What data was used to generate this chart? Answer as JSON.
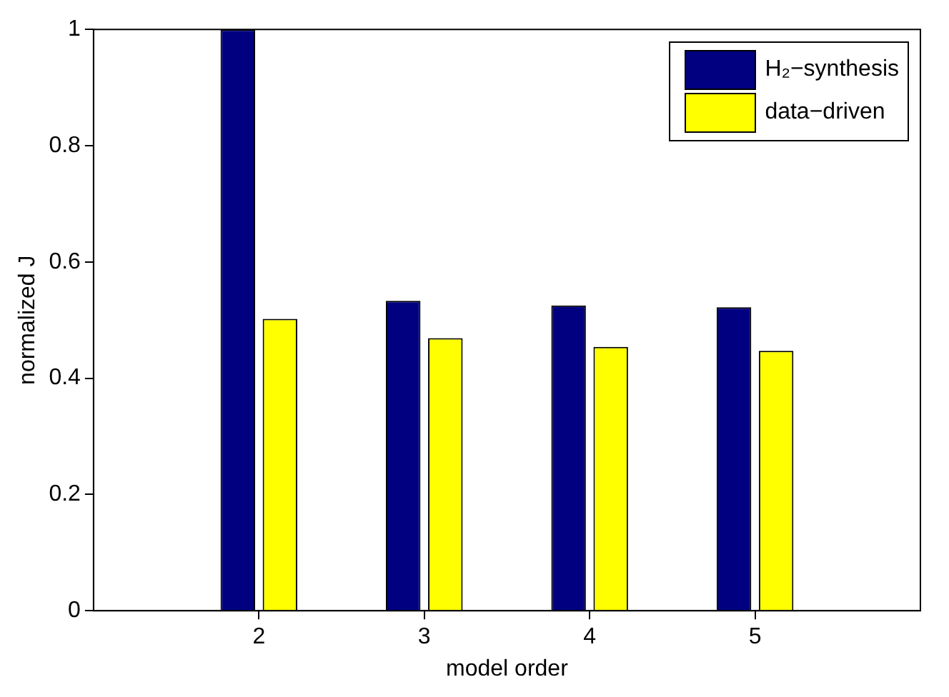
{
  "chart_data": {
    "type": "bar",
    "xlabel": "model order",
    "ylabel": "normalized J",
    "x": [
      2,
      3,
      4,
      5
    ],
    "xlim": [
      1,
      6
    ],
    "xticks": [
      2,
      3,
      4,
      5
    ],
    "ylim": [
      0,
      1
    ],
    "yticks": [
      0,
      0.2,
      0.4,
      0.6,
      0.8,
      1
    ],
    "series": [
      {
        "name": "H₂−synthesis",
        "color": "#000080",
        "values": [
          1.0,
          0.533,
          0.525,
          0.522
        ]
      },
      {
        "name": "data−driven",
        "color": "#ffff00",
        "values": [
          0.502,
          0.469,
          0.454,
          0.447
        ]
      }
    ],
    "legend": "top right"
  }
}
